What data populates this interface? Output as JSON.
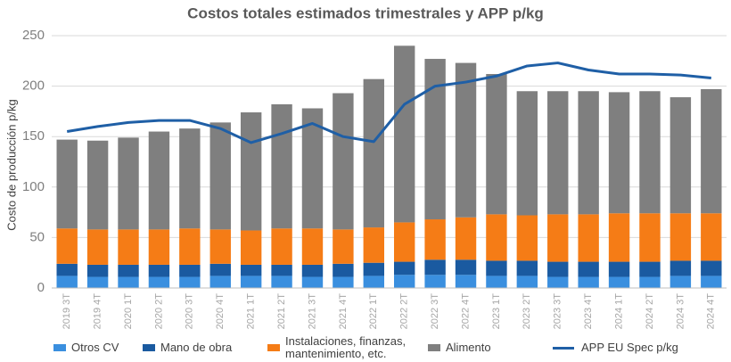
{
  "chart_data": {
    "type": "bar",
    "stacked": true,
    "title": "Costos totales estimados trimestrales y APP p/kg",
    "y_label": "Costo de producción p/kg",
    "categories": [
      "2019 3T",
      "2019 4T",
      "2020 1T",
      "2020 2T",
      "2020 3T",
      "2020 4T",
      "2021 1T",
      "2021 2T",
      "2021 3T",
      "2021 4T",
      "2022 1T",
      "2022 2T",
      "2022 3T",
      "2022 4T",
      "2023 1T",
      "2023 2T",
      "2023 3T",
      "2023 4T",
      "2024 1T",
      "2024 2T",
      "2024 3T",
      "2024 4T"
    ],
    "series": [
      {
        "name": "Otros CV",
        "color": "#3a8fdf",
        "values": [
          12,
          11,
          11,
          11,
          11,
          12,
          12,
          12,
          11,
          11,
          12,
          13,
          13,
          13,
          12,
          12,
          11,
          11,
          11,
          11,
          12,
          12
        ]
      },
      {
        "name": "Mano de obra",
        "color": "#1a5aa0",
        "values": [
          12,
          12,
          12,
          12,
          12,
          12,
          11,
          11,
          12,
          13,
          13,
          13,
          15,
          15,
          15,
          15,
          15,
          15,
          15,
          15,
          15,
          15
        ]
      },
      {
        "name": "Instalaciones, finanzas, mantenimiento, etc.",
        "color": "#f57c16",
        "values": [
          35,
          35,
          35,
          35,
          36,
          34,
          34,
          36,
          36,
          34,
          35,
          39,
          40,
          42,
          46,
          45,
          47,
          47,
          48,
          48,
          47,
          47
        ]
      },
      {
        "name": "Alimento",
        "color": "#7f7f7f",
        "values": [
          88,
          88,
          91,
          97,
          99,
          106,
          117,
          123,
          119,
          135,
          147,
          175,
          159,
          153,
          139,
          123,
          122,
          122,
          120,
          121,
          115,
          123
        ]
      },
      {
        "name": "APP EU Spec p/kg",
        "color": "#1f5fa6",
        "type": "line",
        "values": [
          155,
          160,
          164,
          166,
          166,
          158,
          144,
          153,
          163,
          150,
          145,
          182,
          200,
          204,
          210,
          220,
          223,
          216,
          212,
          212,
          211,
          208
        ]
      }
    ],
    "ylim": [
      0,
      250
    ],
    "yticks": [
      0,
      50,
      100,
      150,
      200,
      250
    ],
    "grid": true,
    "legend": "bottom"
  }
}
